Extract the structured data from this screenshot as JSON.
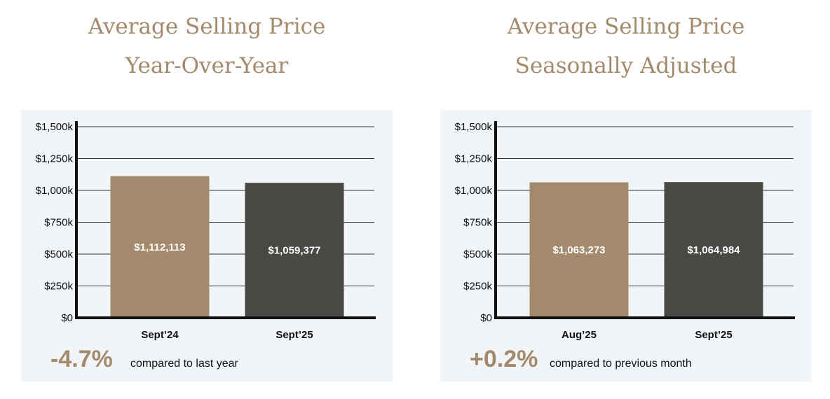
{
  "colors": {
    "accent": "#a48a6c",
    "dark": "#4a4845",
    "card_bg": "#f2f5f8",
    "gridline": "#333333"
  },
  "chart_data": [
    {
      "type": "bar",
      "title": "Average Selling Price",
      "subtitle": "Year-Over-Year",
      "categories": [
        "Sept’24",
        "Sept’25"
      ],
      "values": [
        1112113,
        1059377
      ],
      "value_labels": [
        "$1,112,113",
        "$1,059,377"
      ],
      "bar_colors": [
        "#a48a6c",
        "#4a4845"
      ],
      "ylim": [
        0,
        1500000
      ],
      "yticks": [
        0,
        250000,
        500000,
        750000,
        1000000,
        1250000,
        1500000
      ],
      "ytick_labels": [
        "$0",
        "$250k",
        "$500k",
        "$750k",
        "$1,000k",
        "$1,250k",
        "$1,500k"
      ],
      "grid": true,
      "change": "-4.7%",
      "change_label": "compared to last year"
    },
    {
      "type": "bar",
      "title": "Average Selling Price",
      "subtitle": "Seasonally Adjusted",
      "categories": [
        "Aug’25",
        "Sept’25"
      ],
      "values": [
        1063273,
        1064984
      ],
      "value_labels": [
        "$1,063,273",
        "$1,064,984"
      ],
      "bar_colors": [
        "#a48a6c",
        "#4a4845"
      ],
      "ylim": [
        0,
        1500000
      ],
      "yticks": [
        0,
        250000,
        500000,
        750000,
        1000000,
        1250000,
        1500000
      ],
      "ytick_labels": [
        "$0",
        "$250k",
        "$500k",
        "$750k",
        "$1,000k",
        "$1,250k",
        "$1,500k"
      ],
      "grid": true,
      "change": "+0.2%",
      "change_label": "compared to previous month"
    }
  ]
}
